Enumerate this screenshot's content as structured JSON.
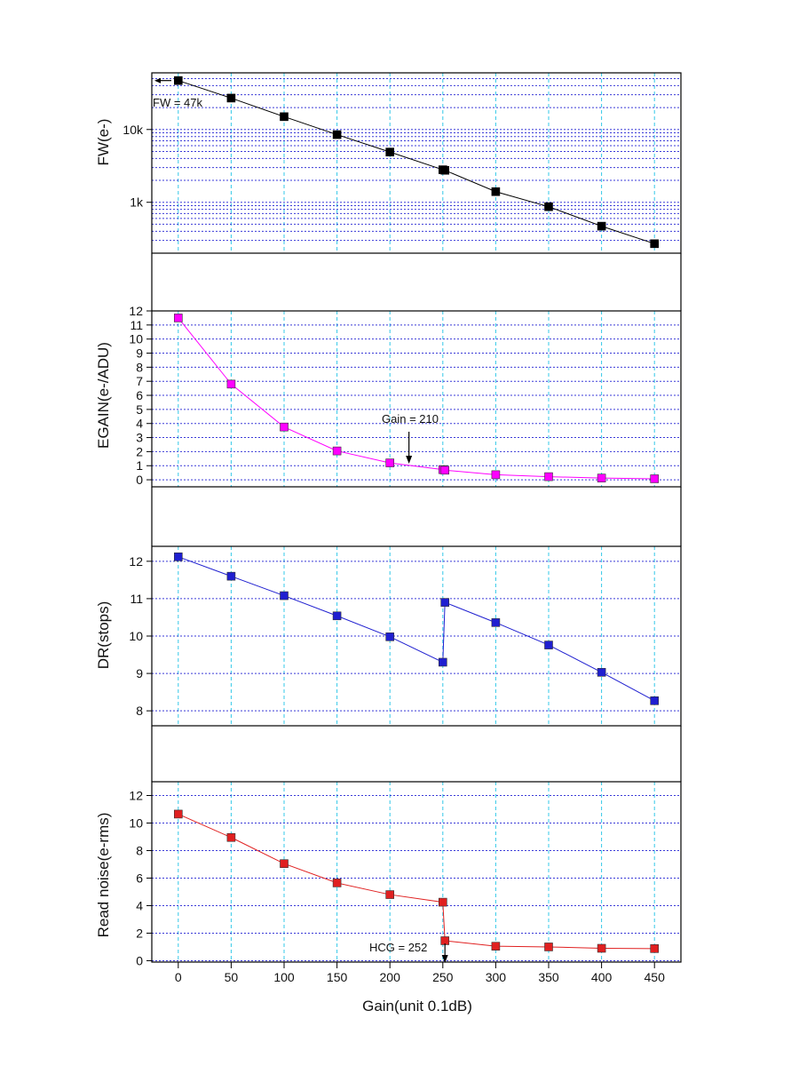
{
  "chart_data": [
    {
      "type": "line",
      "ylabel": "FW(e-)",
      "yscale": "log",
      "ylim": [
        200,
        60000
      ],
      "yticks": [
        1000,
        10000
      ],
      "ytick_labels": [
        "1k",
        "10k"
      ],
      "grid": true,
      "color": "#000000",
      "marker": "square",
      "series": [
        {
          "x": [
            0,
            50,
            100,
            150,
            200,
            250,
            252,
            300,
            350,
            400,
            450
          ],
          "y": [
            47000,
            27000,
            15000,
            8500,
            4900,
            2800,
            2750,
            1400,
            870,
            470,
            270
          ]
        }
      ],
      "annotations": [
        {
          "text": "FW = 47k",
          "x": 0,
          "y": 47000,
          "arrow": "left"
        }
      ]
    },
    {
      "type": "line",
      "ylabel": "EGAIN(e-/ADU)",
      "ylim": [
        -0.5,
        12
      ],
      "yticks": [
        0,
        1,
        2,
        3,
        4,
        5,
        6,
        7,
        8,
        9,
        10,
        11,
        12
      ],
      "grid": true,
      "color": "#ff00ff",
      "marker": "square",
      "series": [
        {
          "x": [
            0,
            50,
            100,
            150,
            200,
            250,
            252,
            300,
            350,
            400,
            450
          ],
          "y": [
            11.5,
            6.8,
            3.75,
            2.05,
            1.2,
            0.72,
            0.68,
            0.36,
            0.22,
            0.12,
            0.07
          ]
        }
      ],
      "annotations": [
        {
          "text": "Gain = 210",
          "x": 218,
          "y": 1.15,
          "arrow": "down"
        }
      ]
    },
    {
      "type": "line",
      "ylabel": "DR(stops)",
      "ylim": [
        7.6,
        12.4
      ],
      "yticks": [
        8,
        9,
        10,
        11,
        12
      ],
      "grid": true,
      "color": "#1f1fd0",
      "marker": "square",
      "series": [
        {
          "x": [
            0,
            50,
            100,
            150,
            200,
            250,
            252,
            300,
            350,
            400,
            450
          ],
          "y": [
            12.12,
            11.6,
            11.08,
            10.54,
            9.98,
            9.3,
            10.9,
            10.36,
            9.76,
            9.03,
            8.27
          ]
        }
      ]
    },
    {
      "type": "line",
      "xlabel": "Gain(unit 0.1dB)",
      "ylabel": "Read noise(e-rms)",
      "ylim": [
        -0.1,
        13
      ],
      "yticks": [
        0,
        2,
        4,
        6,
        8,
        10,
        12
      ],
      "grid": true,
      "color": "#e02020",
      "marker": "square",
      "series": [
        {
          "x": [
            0,
            50,
            100,
            150,
            200,
            250,
            252,
            300,
            350,
            400,
            450
          ],
          "y": [
            10.65,
            8.95,
            7.05,
            5.65,
            4.8,
            4.25,
            1.45,
            1.05,
            1.0,
            0.9,
            0.88
          ]
        }
      ],
      "annotations": [
        {
          "text": "HCG = 252",
          "x": 252,
          "y": 0.2,
          "arrow": "down"
        }
      ]
    }
  ],
  "x_axis": {
    "xlim": [
      -25,
      475
    ],
    "ticks": [
      0,
      50,
      100,
      150,
      200,
      250,
      300,
      350,
      400,
      450
    ],
    "tick_labels": [
      "0",
      "50",
      "100",
      "150",
      "200",
      "250",
      "300",
      "350",
      "400",
      "450"
    ]
  }
}
